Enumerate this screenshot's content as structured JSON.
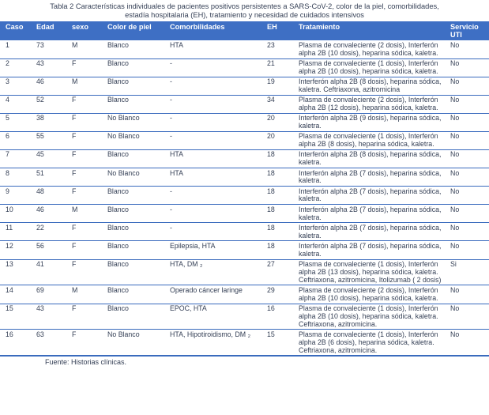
{
  "colors": {
    "header_bg": "#3e6fc4",
    "border": "#3a6bbd",
    "text": "#343f55",
    "header_text": "#ffffff"
  },
  "table": {
    "title_line1": "Tabla 2 Características  individuales  de pacientes  positivos  persistentes  a SARS-CoV-2,  color de la piel, comorbilidades,",
    "title_line2": "estadía  hospitalaria  (EH), tratamiento  y necesidad  de cuidados  intensivos",
    "columns": [
      "Caso",
      "Edad",
      "sexo",
      "Color de piel",
      "Comorbilidades",
      "EH",
      "Tratamiento",
      "Servicio UTI"
    ],
    "rows": [
      {
        "caso": "1",
        "edad": "73",
        "sexo": "M",
        "color_piel": "Blanco",
        "comorbilidades": "HTA",
        "eh": "23",
        "tratamiento": "Plasma de convaleciente  (2 dosis), Interferón  alpha 2B (10 dosis), heparina sódica,  kaletra.",
        "servicio_uti": "No"
      },
      {
        "caso": "2",
        "edad": "43",
        "sexo": "F",
        "color_piel": "Blanco",
        "comorbilidades": "-",
        "eh": "21",
        "tratamiento": "Plasma de convaleciente  (1 dosis), Interferón  alpha 2B (10 dosis), heparina sódica,  kaletra.",
        "servicio_uti": "No"
      },
      {
        "caso": "3",
        "edad": "46",
        "sexo": "M",
        "color_piel": "Blanco",
        "comorbilidades": "-",
        "eh": "19",
        "tratamiento": "Interferón  alpha 2B (8 dosis),  heparina sódica,  kaletra. Ceftriaxona, azitromicina",
        "servicio_uti": "No"
      },
      {
        "caso": "4",
        "edad": "52",
        "sexo": "F",
        "color_piel": "Blanco",
        "comorbilidades": "-",
        "eh": "34",
        "tratamiento": "Plasma de convaleciente  (2 dosis), Interferón  alpha 2B (12 dosis), heparina sódica,  kaletra.",
        "servicio_uti": "No"
      },
      {
        "caso": "5",
        "edad": "38",
        "sexo": "F",
        "color_piel": "No Blanco",
        "comorbilidades": "-",
        "eh": "20",
        "tratamiento": "Interferón  alpha 2B (9 dosis),  heparina sódica,  kaletra.",
        "servicio_uti": "No"
      },
      {
        "caso": "6",
        "edad": "55",
        "sexo": "F",
        "color_piel": "No Blanco",
        "comorbilidades": "-",
        "eh": "20",
        "tratamiento": "Plasma de convaleciente  (1 dosis), Interferón  alpha 2B (8 dosis),  heparina sódica,  kaletra.",
        "servicio_uti": "No"
      },
      {
        "caso": "7",
        "edad": "45",
        "sexo": "F",
        "color_piel": "Blanco",
        "comorbilidades": "HTA",
        "eh": "18",
        "tratamiento": "Interferón  alpha 2B (8 dosis),  heparina sódica,  kaletra.",
        "servicio_uti": "No"
      },
      {
        "caso": "8",
        "edad": "51",
        "sexo": "F",
        "color_piel": "No Blanco",
        "comorbilidades": "HTA",
        "eh": "18",
        "tratamiento": "Interferón  alpha 2B (7 dosis),  heparina sódica,  kaletra.",
        "servicio_uti": "No"
      },
      {
        "caso": "9",
        "edad": "48",
        "sexo": "F",
        "color_piel": "Blanco",
        "comorbilidades": "-",
        "eh": "18",
        "tratamiento": "Interferón  alpha 2B (7 dosis),  heparina sódica,  kaletra.",
        "servicio_uti": "No"
      },
      {
        "caso": "10",
        "edad": "46",
        "sexo": "M",
        "color_piel": "Blanco",
        "comorbilidades": "-",
        "eh": "18",
        "tratamiento": "Interferón  alpha 2B (7 dosis),  heparina sódica,  kaletra.",
        "servicio_uti": "No"
      },
      {
        "caso": "11",
        "edad": "22",
        "sexo": "F",
        "color_piel": "Blanco",
        "comorbilidades": "-",
        "eh": "18",
        "tratamiento": "Interferón  alpha 2B (7 dosis),  heparina sódica,  kaletra.",
        "servicio_uti": "No"
      },
      {
        "caso": "12",
        "edad": "56",
        "sexo": "F",
        "color_piel": "Blanco",
        "comorbilidades": "Epilepsia,  HTA",
        "eh": "18",
        "tratamiento": "Interferón  alpha 2B (7 dosis),  heparina sódica,  kaletra.",
        "servicio_uti": "No"
      },
      {
        "caso": "13",
        "edad": "41",
        "sexo": "F",
        "color_piel": "Blanco",
        "comorbilidades": "HTA, DM ₂",
        "eh": "27",
        "tratamiento": "Plasma de convaleciente  (1 dosis), Interferón  alpha 2B (13 dosis), heparina sódica,  kaletra. Ceftriaxona, azitromicina,  Itolizumab  ( 2 dosis)",
        "servicio_uti": "Si"
      },
      {
        "caso": "14",
        "edad": "69",
        "sexo": "M",
        "color_piel": "Blanco",
        "comorbilidades": "Operado  cáncer  laringe",
        "eh": "29",
        "tratamiento": "Plasma de convaleciente  (2 dosis), Interferón  alpha 2B (10 dosis), heparina sódica,  kaletra.",
        "servicio_uti": "No"
      },
      {
        "caso": "15",
        "edad": "43",
        "sexo": "F",
        "color_piel": "Blanco",
        "comorbilidades": "EPOC,  HTA",
        "eh": "16",
        "tratamiento": "Plasma de convaleciente  (1 dosis), Interferón  alpha 2B (10 dosis), heparina sódica,  kaletra. Ceftriaxona, azitromicina.",
        "servicio_uti": "No"
      },
      {
        "caso": "16",
        "edad": "63",
        "sexo": "F",
        "color_piel": "No Blanco",
        "comorbilidades": "HTA,  Hipotiroidismo,   DM ₂",
        "eh": "15",
        "tratamiento": "Plasma de convaleciente  (1 dosis), Interferón  alpha 2B (6 dosis),  heparina sódica,  kaletra. Ceftriaxona, azitromicina.",
        "servicio_uti": "No"
      }
    ],
    "source": "Fuente:  Historias  clínicas."
  }
}
